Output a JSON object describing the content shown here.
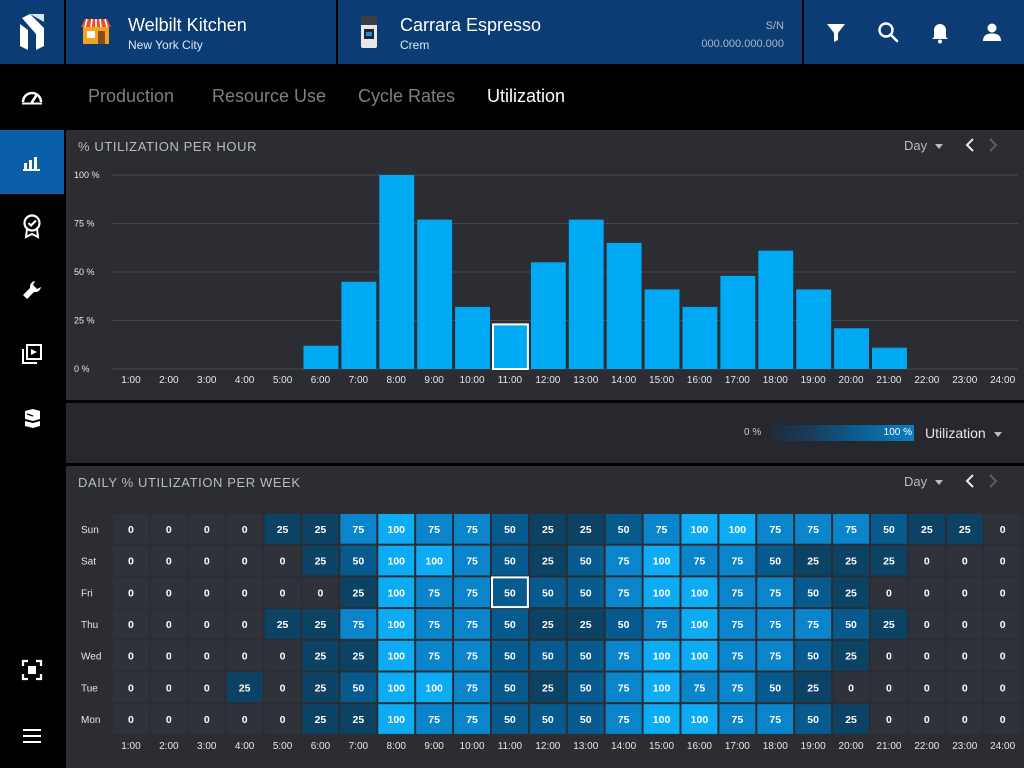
{
  "header": {
    "location": {
      "title": "Welbilt Kitchen",
      "subtitle": "New York City"
    },
    "device": {
      "title": "Carrara Espresso",
      "subtitle": "Crem",
      "sn_label": "S/N",
      "sn_value": "000.000.000.000"
    },
    "actions": [
      "filter-icon",
      "search-icon",
      "bell-icon",
      "user-icon"
    ]
  },
  "sidebar": {
    "items": [
      {
        "icon": "dashboard-gauge-icon",
        "active": false
      },
      {
        "icon": "bar-chart-icon",
        "active": true
      },
      {
        "icon": "badge-check-icon",
        "active": false
      },
      {
        "icon": "wrench-icon",
        "active": false
      },
      {
        "icon": "media-library-icon",
        "active": false
      },
      {
        "icon": "box-stack-icon",
        "active": false
      }
    ],
    "bottom": [
      "scan-icon",
      "menu-icon"
    ]
  },
  "tabs": [
    {
      "label": "Production",
      "active": false
    },
    {
      "label": "Resource Use",
      "active": false
    },
    {
      "label": "Cycle Rates",
      "active": false
    },
    {
      "label": "Utilization",
      "active": true
    }
  ],
  "hourly": {
    "title": "% UTILIZATION PER HOUR",
    "period": "Day"
  },
  "legend": {
    "min_label": "0 %",
    "max_label": "100 %",
    "metric": "Utilization"
  },
  "weekly": {
    "title": "DAILY % UTILIZATION PER WEEK",
    "period": "Day"
  },
  "colors": {
    "bar": "#00a9f4",
    "selected_outline": "#ffffff",
    "panel_bg": "#2b2d33",
    "header_bg": "#0b3c73",
    "active_nav": "#0b5ea8",
    "heat_0": "#2f3239",
    "heat_25": "#0c4263",
    "heat_50": "#075a8d",
    "heat_75": "#0a85cb",
    "heat_100": "#0dabf4"
  },
  "chart_data": [
    {
      "type": "bar",
      "categories": [
        "1:00",
        "2:00",
        "3:00",
        "4:00",
        "5:00",
        "6:00",
        "7:00",
        "8:00",
        "9:00",
        "10:00",
        "11:00",
        "12:00",
        "13:00",
        "14:00",
        "15:00",
        "16:00",
        "17:00",
        "18:00",
        "19:00",
        "20:00",
        "21:00",
        "22:00",
        "23:00",
        "24:00"
      ],
      "values": [
        0,
        0,
        0,
        0,
        0,
        12,
        45,
        100,
        77,
        32,
        23,
        55,
        77,
        65,
        41,
        32,
        48,
        61,
        41,
        21,
        11,
        0,
        0,
        0
      ],
      "highlighted_category": "11:00",
      "yticks": [
        "0 %",
        "25 %",
        "50 %",
        "75 %",
        "100 %"
      ],
      "ylim": [
        0,
        100
      ],
      "grid": true
    },
    {
      "type": "heatmap",
      "rows": [
        "Sun",
        "Sat",
        "Fri",
        "Thu",
        "Wed",
        "Tue",
        "Mon"
      ],
      "columns": [
        "1:00",
        "2:00",
        "3:00",
        "4:00",
        "5:00",
        "6:00",
        "7:00",
        "8:00",
        "9:00",
        "10:00",
        "11:00",
        "12:00",
        "13:00",
        "14:00",
        "15:00",
        "16:00",
        "17:00",
        "18:00",
        "19:00",
        "20:00",
        "21:00",
        "22:00",
        "23:00",
        "24:00"
      ],
      "values": [
        [
          0,
          0,
          0,
          0,
          25,
          25,
          75,
          100,
          75,
          75,
          50,
          25,
          25,
          50,
          75,
          100,
          100,
          75,
          75,
          75,
          50,
          25,
          25,
          0
        ],
        [
          0,
          0,
          0,
          0,
          0,
          25,
          50,
          100,
          100,
          75,
          50,
          25,
          50,
          75,
          100,
          75,
          75,
          50,
          25,
          25,
          25,
          0,
          0,
          0
        ],
        [
          0,
          0,
          0,
          0,
          0,
          0,
          25,
          100,
          75,
          75,
          50,
          50,
          50,
          75,
          100,
          100,
          75,
          75,
          50,
          25,
          0,
          0,
          0,
          0
        ],
        [
          0,
          0,
          0,
          0,
          25,
          25,
          75,
          100,
          75,
          75,
          50,
          25,
          25,
          50,
          75,
          100,
          75,
          75,
          75,
          50,
          25,
          0,
          0,
          0
        ],
        [
          0,
          0,
          0,
          0,
          0,
          25,
          25,
          100,
          75,
          75,
          50,
          50,
          50,
          75,
          100,
          100,
          75,
          75,
          50,
          25,
          0,
          0,
          0,
          0
        ],
        [
          0,
          0,
          0,
          25,
          0,
          25,
          50,
          100,
          100,
          75,
          50,
          25,
          50,
          75,
          100,
          75,
          75,
          50,
          25,
          0,
          0,
          0,
          0,
          0
        ],
        [
          0,
          0,
          0,
          0,
          0,
          25,
          25,
          100,
          75,
          75,
          50,
          50,
          50,
          75,
          100,
          100,
          75,
          75,
          50,
          25,
          0,
          0,
          0,
          0
        ]
      ],
      "highlighted_cell": {
        "row": "Fri",
        "column": "11:00"
      }
    }
  ]
}
